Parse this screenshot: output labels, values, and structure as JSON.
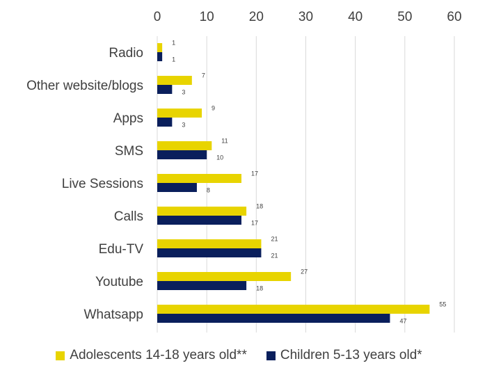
{
  "chart_data": {
    "type": "bar",
    "orientation": "horizontal",
    "categories": [
      "Radio",
      "Other website/blogs",
      "Apps",
      "SMS",
      "Live Sessions",
      "Calls",
      "Edu-TV",
      "Youtube",
      "Whatsapp"
    ],
    "series": [
      {
        "name": "Adolescents 14-18 years old**",
        "color": "#E8D400",
        "values": [
          1,
          7,
          9,
          11,
          17,
          18,
          21,
          27,
          55
        ]
      },
      {
        "name": "Children 5-13 years old*",
        "color": "#0A1F5C",
        "values": [
          1,
          3,
          3,
          10,
          8,
          17,
          21,
          18,
          47
        ]
      }
    ],
    "xlim": [
      0,
      60
    ],
    "x_ticks": [
      0,
      10,
      20,
      30,
      40,
      50,
      60
    ],
    "x_axis_position": "top",
    "grid": true,
    "legend_position": "bottom",
    "data_labels": true,
    "title": "",
    "xlabel": "",
    "ylabel": ""
  }
}
